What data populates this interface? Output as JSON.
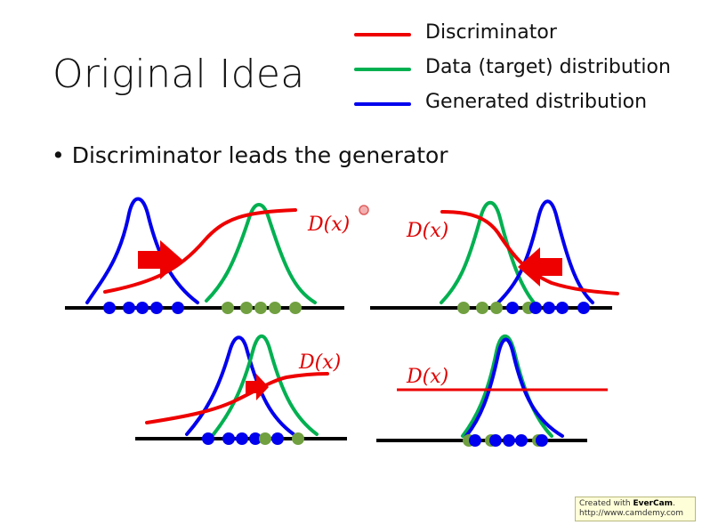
{
  "title": "Original Idea",
  "legend": [
    {
      "label": "Discriminator",
      "color": "#ee0000"
    },
    {
      "label": "Data (target) distribution",
      "color": "#00b050"
    },
    {
      "label": "Generated distribution",
      "color": "#0000ee"
    }
  ],
  "bullet": "• Discriminator leads the generator",
  "colors": {
    "discriminator": "#ee0000",
    "data": "#00b050",
    "generated": "#0000ee",
    "data_dot": "#70a040",
    "gen_dot": "#0000ee",
    "axis": "#000000"
  },
  "panels": [
    {
      "d_label": "D(x)"
    },
    {
      "d_label": "D(x)"
    },
    {
      "d_label": "D(x)"
    },
    {
      "d_label": "D(x)"
    }
  ],
  "watermark": {
    "line1_prefix": "Created with ",
    "brand": "EverCam",
    "line1_suffix": ".",
    "line2": "http://www.camdemy.com"
  }
}
